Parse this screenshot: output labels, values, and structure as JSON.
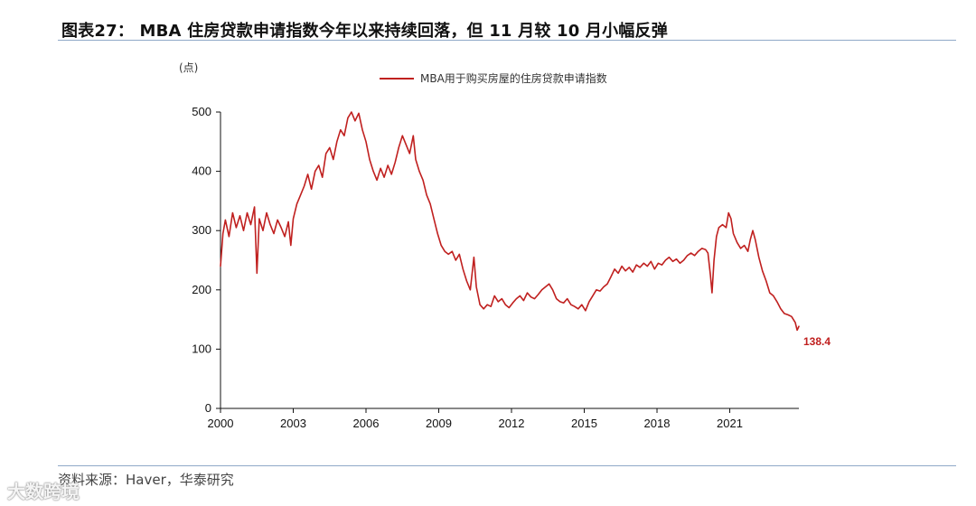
{
  "title": "图表27： MBA 住房贷款申请指数今年以来持续回落，但 11 月较 10 月小幅反弹",
  "source": "资料来源：Haver，华泰研究",
  "watermark": "大数跨境",
  "colors": {
    "series": "#c0201f",
    "axis": "#111111",
    "rule": "#8fa9c8"
  },
  "chart_data": {
    "type": "line",
    "title": "",
    "xlabel": "",
    "ylabel": "(点)",
    "xlim": [
      2000,
      2023.85
    ],
    "ylim": [
      0,
      500
    ],
    "x_ticks": [
      "2000",
      "2003",
      "2006",
      "2009",
      "2012",
      "2015",
      "2018",
      "2021"
    ],
    "y_ticks": [
      "0",
      "100",
      "200",
      "300",
      "400",
      "500"
    ],
    "grid": false,
    "legend_position": "top-center",
    "end_label": "138.4",
    "series": [
      {
        "name": "MBA用于购买房屋的住房贷款申请指数",
        "points": [
          [
            2000.0,
            240
          ],
          [
            2000.1,
            295
          ],
          [
            2000.2,
            318
          ],
          [
            2000.35,
            290
          ],
          [
            2000.5,
            330
          ],
          [
            2000.65,
            305
          ],
          [
            2000.8,
            325
          ],
          [
            2000.95,
            300
          ],
          [
            2001.1,
            330
          ],
          [
            2001.25,
            310
          ],
          [
            2001.4,
            340
          ],
          [
            2001.5,
            228
          ],
          [
            2001.6,
            320
          ],
          [
            2001.75,
            300
          ],
          [
            2001.9,
            330
          ],
          [
            2002.05,
            310
          ],
          [
            2002.2,
            295
          ],
          [
            2002.35,
            318
          ],
          [
            2002.5,
            305
          ],
          [
            2002.65,
            290
          ],
          [
            2002.8,
            315
          ],
          [
            2002.9,
            275
          ],
          [
            2003.0,
            320
          ],
          [
            2003.15,
            345
          ],
          [
            2003.3,
            360
          ],
          [
            2003.45,
            375
          ],
          [
            2003.6,
            395
          ],
          [
            2003.75,
            370
          ],
          [
            2003.9,
            400
          ],
          [
            2004.05,
            410
          ],
          [
            2004.2,
            390
          ],
          [
            2004.35,
            430
          ],
          [
            2004.5,
            440
          ],
          [
            2004.65,
            420
          ],
          [
            2004.8,
            450
          ],
          [
            2004.95,
            470
          ],
          [
            2005.1,
            460
          ],
          [
            2005.25,
            490
          ],
          [
            2005.4,
            500
          ],
          [
            2005.55,
            485
          ],
          [
            2005.7,
            498
          ],
          [
            2005.85,
            470
          ],
          [
            2006.0,
            450
          ],
          [
            2006.15,
            420
          ],
          [
            2006.3,
            400
          ],
          [
            2006.45,
            385
          ],
          [
            2006.6,
            405
          ],
          [
            2006.75,
            390
          ],
          [
            2006.9,
            410
          ],
          [
            2007.05,
            395
          ],
          [
            2007.2,
            415
          ],
          [
            2007.35,
            440
          ],
          [
            2007.5,
            460
          ],
          [
            2007.65,
            445
          ],
          [
            2007.8,
            430
          ],
          [
            2007.95,
            460
          ],
          [
            2008.05,
            420
          ],
          [
            2008.2,
            400
          ],
          [
            2008.35,
            385
          ],
          [
            2008.5,
            360
          ],
          [
            2008.65,
            345
          ],
          [
            2008.8,
            320
          ],
          [
            2008.95,
            295
          ],
          [
            2009.1,
            275
          ],
          [
            2009.25,
            265
          ],
          [
            2009.4,
            260
          ],
          [
            2009.55,
            265
          ],
          [
            2009.7,
            250
          ],
          [
            2009.85,
            260
          ],
          [
            2010.0,
            235
          ],
          [
            2010.15,
            215
          ],
          [
            2010.3,
            200
          ],
          [
            2010.45,
            255
          ],
          [
            2010.55,
            205
          ],
          [
            2010.7,
            175
          ],
          [
            2010.85,
            168
          ],
          [
            2011.0,
            175
          ],
          [
            2011.15,
            172
          ],
          [
            2011.3,
            190
          ],
          [
            2011.45,
            180
          ],
          [
            2011.6,
            185
          ],
          [
            2011.75,
            175
          ],
          [
            2011.9,
            170
          ],
          [
            2012.05,
            178
          ],
          [
            2012.2,
            185
          ],
          [
            2012.35,
            190
          ],
          [
            2012.5,
            182
          ],
          [
            2012.65,
            195
          ],
          [
            2012.8,
            188
          ],
          [
            2012.95,
            185
          ],
          [
            2013.1,
            192
          ],
          [
            2013.25,
            200
          ],
          [
            2013.4,
            205
          ],
          [
            2013.55,
            210
          ],
          [
            2013.7,
            200
          ],
          [
            2013.85,
            185
          ],
          [
            2014.0,
            180
          ],
          [
            2014.15,
            178
          ],
          [
            2014.3,
            185
          ],
          [
            2014.45,
            175
          ],
          [
            2014.6,
            172
          ],
          [
            2014.75,
            168
          ],
          [
            2014.9,
            175
          ],
          [
            2015.05,
            165
          ],
          [
            2015.2,
            180
          ],
          [
            2015.35,
            190
          ],
          [
            2015.5,
            200
          ],
          [
            2015.65,
            198
          ],
          [
            2015.8,
            205
          ],
          [
            2015.95,
            210
          ],
          [
            2016.1,
            222
          ],
          [
            2016.25,
            235
          ],
          [
            2016.4,
            228
          ],
          [
            2016.55,
            240
          ],
          [
            2016.7,
            232
          ],
          [
            2016.85,
            238
          ],
          [
            2017.0,
            230
          ],
          [
            2017.15,
            242
          ],
          [
            2017.3,
            238
          ],
          [
            2017.45,
            245
          ],
          [
            2017.6,
            240
          ],
          [
            2017.75,
            248
          ],
          [
            2017.9,
            235
          ],
          [
            2018.05,
            245
          ],
          [
            2018.2,
            242
          ],
          [
            2018.35,
            250
          ],
          [
            2018.5,
            255
          ],
          [
            2018.65,
            248
          ],
          [
            2018.8,
            252
          ],
          [
            2018.95,
            245
          ],
          [
            2019.1,
            250
          ],
          [
            2019.25,
            258
          ],
          [
            2019.4,
            262
          ],
          [
            2019.55,
            258
          ],
          [
            2019.7,
            265
          ],
          [
            2019.85,
            270
          ],
          [
            2020.0,
            268
          ],
          [
            2020.1,
            262
          ],
          [
            2020.2,
            225
          ],
          [
            2020.27,
            195
          ],
          [
            2020.35,
            250
          ],
          [
            2020.45,
            290
          ],
          [
            2020.55,
            305
          ],
          [
            2020.7,
            310
          ],
          [
            2020.85,
            305
          ],
          [
            2020.95,
            330
          ],
          [
            2021.05,
            320
          ],
          [
            2021.15,
            295
          ],
          [
            2021.3,
            280
          ],
          [
            2021.45,
            270
          ],
          [
            2021.6,
            275
          ],
          [
            2021.75,
            265
          ],
          [
            2021.85,
            285
          ],
          [
            2021.95,
            300
          ],
          [
            2022.05,
            285
          ],
          [
            2022.2,
            255
          ],
          [
            2022.35,
            232
          ],
          [
            2022.5,
            215
          ],
          [
            2022.65,
            195
          ],
          [
            2022.8,
            190
          ],
          [
            2022.95,
            180
          ],
          [
            2023.1,
            168
          ],
          [
            2023.25,
            160
          ],
          [
            2023.4,
            158
          ],
          [
            2023.55,
            155
          ],
          [
            2023.7,
            145
          ],
          [
            2023.78,
            132
          ],
          [
            2023.85,
            138.4
          ]
        ]
      }
    ]
  }
}
